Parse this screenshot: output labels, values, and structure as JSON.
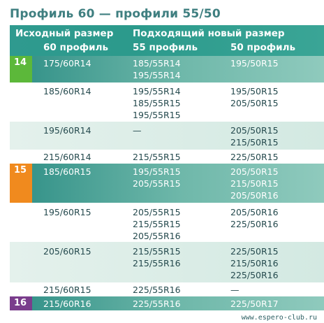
{
  "title": "Профиль 60 — профили 55/50",
  "header": {
    "col1_top": "Исходный размер",
    "col1_sub": "60 профиль",
    "col23_top": "Подходящий новый размер",
    "col2_sub": "55 профиль",
    "col3_sub": "50 профиль"
  },
  "colors": {
    "header": "#2c9a8c",
    "row_dark": "#2f8f86",
    "row_light": "#e4f1ec",
    "badge_14": "#5cb83a",
    "badge_15": "#f08a1e",
    "badge_16": "#7a3d8c"
  },
  "rows": [
    {
      "badge": "14",
      "source": "175/60R14",
      "p55": [
        "185/55R14",
        "195/55R14"
      ],
      "p50": [
        "195/50R15"
      ]
    },
    {
      "badge": "",
      "source": "185/60R14",
      "p55": [
        "195/55R14",
        "185/55R15",
        "195/55R15"
      ],
      "p50": [
        "195/50R15",
        "205/50R15"
      ]
    },
    {
      "badge": "",
      "source": "195/60R14",
      "p55": [
        "—"
      ],
      "p50": [
        "205/50R15",
        "215/50R15"
      ]
    },
    {
      "badge": "",
      "source": "215/60R14",
      "p55": [
        "215/55R15"
      ],
      "p50": [
        "225/50R15"
      ]
    },
    {
      "badge": "15",
      "source": "185/60R15",
      "p55": [
        "195/55R15",
        "205/55R15"
      ],
      "p50": [
        "205/50R15",
        "215/50R15",
        "205/50R16"
      ]
    },
    {
      "badge": "",
      "source": "195/60R15",
      "p55": [
        "205/55R15",
        "215/55R15",
        "205/55R16"
      ],
      "p50": [
        "205/50R16",
        "225/50R16"
      ]
    },
    {
      "badge": "",
      "source": "205/60R15",
      "p55": [
        "215/55R15",
        "215/55R16"
      ],
      "p50": [
        "225/50R15",
        "215/50R16",
        "225/50R16"
      ]
    },
    {
      "badge": "",
      "source": "215/60R15",
      "p55": [
        "225/55R16"
      ],
      "p50": [
        "—"
      ]
    },
    {
      "badge": "16",
      "source": "215/60R16",
      "p55": [
        "225/55R16"
      ],
      "p50": [
        "225/50R17"
      ]
    }
  ],
  "watermark": "www.espero-club.ru"
}
